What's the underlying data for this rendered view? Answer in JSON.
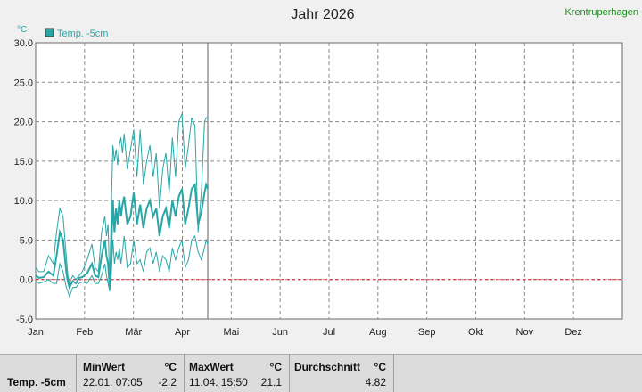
{
  "header": {
    "title": "Jahr 2026",
    "station": "Krentruperhagen",
    "unit": "°C"
  },
  "legend": {
    "label": "Temp. -5cm",
    "color": "#2aa6a6"
  },
  "chart_data": {
    "type": "line",
    "title": "Jahr 2026",
    "ylabel": "°C",
    "ylim": [
      -5,
      30
    ],
    "y_ticks": [
      "30.0",
      "25.0",
      "20.0",
      "15.0",
      "10.0",
      "5.0",
      "0.0",
      "-5.0"
    ],
    "x_ticks": [
      "Jan",
      "Feb",
      "Mär",
      "Apr",
      "Mai",
      "Jun",
      "Jul",
      "Aug",
      "Sep",
      "Okt",
      "Nov",
      "Dez"
    ],
    "grid": true,
    "legend_position": "top-left",
    "reference_line": {
      "y": 0,
      "color": "#d02020"
    },
    "current_day_marker": "Apr 18",
    "series": [
      {
        "name": "Temp. -5cm",
        "color": "#2aa6a6",
        "x_day": [
          1,
          3,
          6,
          9,
          12,
          14,
          16,
          18,
          20,
          21,
          22,
          24,
          26,
          28,
          30,
          33,
          36,
          38,
          40,
          42,
          44,
          45,
          46,
          47,
          48,
          49,
          50,
          51,
          52,
          53,
          54,
          55,
          56,
          58,
          60,
          62,
          64,
          66,
          68,
          70,
          72,
          74,
          76,
          78,
          80,
          82,
          84,
          86,
          88,
          90,
          92,
          94,
          96,
          98,
          100,
          102,
          104,
          106,
          107,
          108
        ],
        "max": [
          1.5,
          1.0,
          1.0,
          3.0,
          2.0,
          6.0,
          9.0,
          8.0,
          3.0,
          0.5,
          -0.5,
          0.5,
          0.0,
          0.5,
          1.0,
          2.5,
          4.5,
          1.5,
          1.0,
          6.0,
          8.0,
          5.5,
          7.0,
          -0.5,
          9.0,
          17.0,
          15.0,
          16.5,
          14.5,
          17.0,
          18.0,
          16.0,
          18.5,
          14.0,
          16.5,
          19.0,
          13.0,
          19.0,
          12.0,
          15.0,
          17.0,
          13.0,
          16.0,
          9.0,
          14.0,
          16.0,
          11.0,
          18.0,
          13.0,
          20.0,
          21.0,
          14.0,
          17.0,
          20.5,
          19.5,
          6.0,
          11.0,
          20.0,
          20.5,
          20.5
        ],
        "mean": [
          0.5,
          0.2,
          0.3,
          1.0,
          0.5,
          3.0,
          6.0,
          5.0,
          1.0,
          -0.3,
          -1.0,
          -0.2,
          -0.5,
          0.2,
          0.3,
          0.8,
          2.0,
          0.5,
          0.3,
          3.0,
          5.0,
          3.0,
          2.0,
          -1.0,
          4.0,
          10.0,
          6.0,
          9.0,
          7.0,
          10.0,
          8.0,
          9.5,
          10.5,
          7.0,
          8.0,
          11.0,
          7.0,
          9.5,
          6.5,
          9.0,
          10.0,
          8.0,
          9.0,
          5.5,
          8.0,
          9.0,
          6.5,
          10.0,
          8.0,
          10.5,
          11.5,
          7.0,
          9.0,
          11.5,
          12.0,
          7.0,
          8.5,
          11.0,
          12.0,
          11.5
        ],
        "min": [
          -0.2,
          -0.5,
          -0.3,
          0.0,
          -0.5,
          -0.5,
          2.0,
          1.0,
          -1.0,
          -1.5,
          -2.2,
          -1.0,
          -1.0,
          -0.5,
          -0.3,
          -0.5,
          0.5,
          -0.5,
          -0.5,
          0.5,
          2.0,
          0.5,
          -0.5,
          -1.5,
          0.5,
          5.0,
          2.0,
          3.5,
          2.5,
          4.0,
          2.0,
          3.5,
          5.5,
          1.5,
          2.0,
          5.0,
          2.0,
          2.5,
          1.0,
          3.5,
          4.0,
          2.0,
          3.5,
          1.0,
          3.0,
          2.5,
          1.0,
          4.0,
          2.5,
          4.0,
          5.0,
          1.5,
          2.5,
          5.0,
          5.5,
          3.5,
          2.5,
          4.0,
          5.0,
          4.5
        ]
      }
    ]
  },
  "stats": {
    "row_label": "Temp. -5cm",
    "min": {
      "header": "MinWert",
      "unit": "°C",
      "time": "22.01.  07:05",
      "value": "-2.2"
    },
    "max": {
      "header": "MaxWert",
      "unit": "°C",
      "time": "11.04.  15:50",
      "value": "21.1"
    },
    "avg": {
      "header": "Durchschnitt",
      "unit": "°C",
      "value": "4.82"
    }
  }
}
